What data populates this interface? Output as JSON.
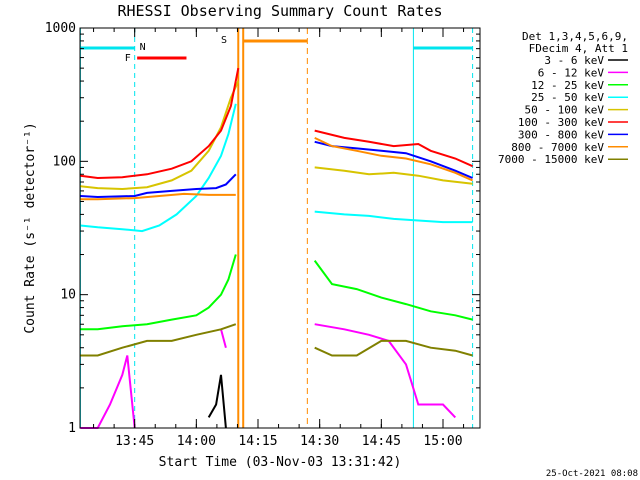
{
  "chart_data": {
    "type": "line",
    "title": "RHESSI Observing Summary Count Rates",
    "xlabel": "Start Time (03-Nov-03 13:31:42)",
    "ylabel": "Count Rate (s⁻¹ detector⁻¹)",
    "yscale": "log",
    "ylim": [
      1,
      1000
    ],
    "xlim": [
      "13:31:42",
      "15:09:00"
    ],
    "x_ticks": [
      "13:45",
      "14:00",
      "14:15",
      "14:30",
      "14:45",
      "15:00"
    ],
    "y_ticks": [
      "1",
      "10",
      "100",
      "1000"
    ],
    "legend_header": [
      "Det 1,3,4,5,6,9,",
      "FDecim 4, Att 1"
    ],
    "legend_position": "right",
    "timestamp": "25-Oct-2021 08:08",
    "flag_labels": {
      "N": "N",
      "F": "F",
      "S": "S"
    },
    "series": [
      {
        "name": "3 - 6 keV",
        "color": "#000000",
        "points": [
          [
            13.85,
            1.0
          ],
          [
            14.05,
            1.2
          ],
          [
            14.08,
            1.5
          ],
          [
            14.1,
            2.5
          ],
          [
            14.12,
            1.0
          ]
        ]
      },
      {
        "name": "6 - 12 keV",
        "color": "#ff00ff",
        "points": [
          [
            13.53,
            1.0
          ],
          [
            13.6,
            1.0
          ],
          [
            13.65,
            1.5
          ],
          [
            13.7,
            2.5
          ],
          [
            13.72,
            3.5
          ],
          [
            13.75,
            1.0
          ],
          [
            14.1,
            5.5
          ],
          [
            14.12,
            4.0
          ],
          [
            14.48,
            6.0
          ],
          [
            14.6,
            5.5
          ],
          [
            14.7,
            5.0
          ],
          [
            14.78,
            4.5
          ],
          [
            14.85,
            3.0
          ],
          [
            14.9,
            1.5
          ],
          [
            15.0,
            1.5
          ],
          [
            15.05,
            1.2
          ]
        ]
      },
      {
        "name": "12 - 25 keV",
        "color": "#00ff00",
        "points": [
          [
            13.53,
            5.5
          ],
          [
            13.6,
            5.5
          ],
          [
            13.7,
            5.8
          ],
          [
            13.8,
            6.0
          ],
          [
            13.9,
            6.5
          ],
          [
            14.0,
            7.0
          ],
          [
            14.05,
            8.0
          ],
          [
            14.1,
            10.0
          ],
          [
            14.13,
            13.0
          ],
          [
            14.16,
            20.0
          ],
          [
            14.48,
            18.0
          ],
          [
            14.55,
            12.0
          ],
          [
            14.65,
            11.0
          ],
          [
            14.75,
            9.5
          ],
          [
            14.85,
            8.5
          ],
          [
            14.95,
            7.5
          ],
          [
            15.05,
            7.0
          ],
          [
            15.12,
            6.5
          ]
        ]
      },
      {
        "name": "25 - 50 keV",
        "color": "#00ffff",
        "points": [
          [
            13.53,
            33.0
          ],
          [
            13.6,
            32.0
          ],
          [
            13.7,
            31.0
          ],
          [
            13.78,
            30.0
          ],
          [
            13.85,
            33.0
          ],
          [
            13.92,
            40.0
          ],
          [
            14.0,
            55.0
          ],
          [
            14.05,
            75.0
          ],
          [
            14.1,
            110.0
          ],
          [
            14.13,
            160.0
          ],
          [
            14.16,
            270.0
          ],
          [
            14.48,
            42.0
          ],
          [
            14.6,
            40.0
          ],
          [
            14.7,
            39.0
          ],
          [
            14.8,
            37.0
          ],
          [
            14.9,
            36.0
          ],
          [
            15.0,
            35.0
          ],
          [
            15.12,
            35.0
          ]
        ]
      },
      {
        "name": "50 - 100 keV",
        "color": "#d7c400",
        "points": [
          [
            13.53,
            65.0
          ],
          [
            13.6,
            63.0
          ],
          [
            13.7,
            62.0
          ],
          [
            13.8,
            64.0
          ],
          [
            13.9,
            72.0
          ],
          [
            13.98,
            85.0
          ],
          [
            14.05,
            120.0
          ],
          [
            14.1,
            180.0
          ],
          [
            14.14,
            300.0
          ],
          [
            14.17,
            400.0
          ],
          [
            14.48,
            90.0
          ],
          [
            14.6,
            85.0
          ],
          [
            14.7,
            80.0
          ],
          [
            14.8,
            82.0
          ],
          [
            14.9,
            78.0
          ],
          [
            15.0,
            72.0
          ],
          [
            15.12,
            68.0
          ]
        ]
      },
      {
        "name": "100 - 300 keV",
        "color": "#ff0000",
        "points": [
          [
            13.53,
            78.0
          ],
          [
            13.6,
            75.0
          ],
          [
            13.7,
            76.0
          ],
          [
            13.8,
            80.0
          ],
          [
            13.9,
            88.0
          ],
          [
            13.98,
            100.0
          ],
          [
            14.05,
            130.0
          ],
          [
            14.1,
            170.0
          ],
          [
            14.14,
            260.0
          ],
          [
            14.17,
            500.0
          ],
          [
            14.48,
            170.0
          ],
          [
            14.6,
            150.0
          ],
          [
            14.7,
            140.0
          ],
          [
            14.8,
            130.0
          ],
          [
            14.9,
            135.0
          ],
          [
            14.95,
            120.0
          ],
          [
            15.05,
            105.0
          ],
          [
            15.12,
            92.0
          ]
        ]
      },
      {
        "name": "300 - 800 keV",
        "color": "#0000ff",
        "points": [
          [
            13.53,
            55.0
          ],
          [
            13.6,
            54.0
          ],
          [
            13.75,
            55.0
          ],
          [
            13.8,
            58.0
          ],
          [
            13.9,
            60.0
          ],
          [
            14.0,
            62.0
          ],
          [
            14.08,
            63.0
          ],
          [
            14.12,
            67.0
          ],
          [
            14.16,
            80.0
          ],
          [
            14.48,
            140.0
          ],
          [
            14.55,
            130.0
          ],
          [
            14.65,
            125.0
          ],
          [
            14.75,
            120.0
          ],
          [
            14.85,
            115.0
          ],
          [
            14.95,
            100.0
          ],
          [
            15.05,
            85.0
          ],
          [
            15.12,
            75.0
          ]
        ]
      },
      {
        "name": "800 - 7000 keV",
        "color": "#ff8c00",
        "points": [
          [
            13.53,
            52.0
          ],
          [
            13.6,
            52.0
          ],
          [
            13.75,
            53.0
          ],
          [
            13.85,
            55.0
          ],
          [
            13.95,
            57.0
          ],
          [
            14.05,
            56.0
          ],
          [
            14.16,
            56.0
          ],
          [
            14.48,
            150.0
          ],
          [
            14.55,
            130.0
          ],
          [
            14.65,
            120.0
          ],
          [
            14.75,
            110.0
          ],
          [
            14.85,
            105.0
          ],
          [
            14.95,
            95.0
          ],
          [
            15.05,
            82.0
          ],
          [
            15.12,
            72.0
          ]
        ]
      },
      {
        "name": "7000 - 15000 keV",
        "color": "#808000",
        "points": [
          [
            13.53,
            3.5
          ],
          [
            13.6,
            3.5
          ],
          [
            13.7,
            4.0
          ],
          [
            13.8,
            4.5
          ],
          [
            13.9,
            4.5
          ],
          [
            14.0,
            5.0
          ],
          [
            14.1,
            5.5
          ],
          [
            14.16,
            6.0
          ],
          [
            14.48,
            4.0
          ],
          [
            14.55,
            3.5
          ],
          [
            14.65,
            3.5
          ],
          [
            14.75,
            4.5
          ],
          [
            14.85,
            4.5
          ],
          [
            14.95,
            4.0
          ],
          [
            15.05,
            3.8
          ],
          [
            15.12,
            3.5
          ]
        ]
      }
    ]
  }
}
